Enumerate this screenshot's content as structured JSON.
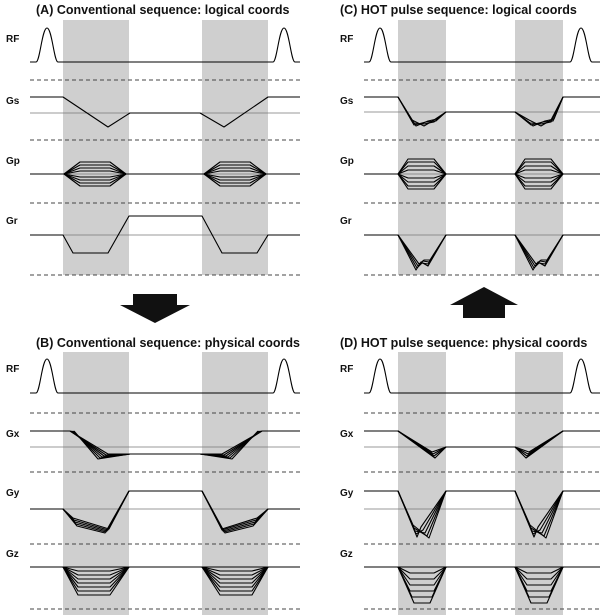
{
  "panels": [
    {
      "id": "A",
      "title": "(A) Conventional sequence: logical coords",
      "channels": [
        "RF",
        "Gs",
        "Gp",
        "Gr"
      ]
    },
    {
      "id": "C",
      "title": "(C) HOT pulse sequence: logical coords",
      "channels": [
        "RF",
        "Gs",
        "Gp",
        "Gr"
      ]
    },
    {
      "id": "B",
      "title": "(B) Conventional sequence: physical coords",
      "channels": [
        "RF",
        "Gx",
        "Gy",
        "Gz"
      ]
    },
    {
      "id": "D",
      "title": "(D) HOT pulse sequence: physical coords",
      "channels": [
        "RF",
        "Gx",
        "Gy",
        "Gz"
      ]
    }
  ],
  "arrows": [
    {
      "name": "down-arrow",
      "direction": "down",
      "meaning": "logical to physical"
    },
    {
      "name": "up-arrow",
      "direction": "up",
      "meaning": "physical to logical"
    }
  ],
  "colors": {
    "shade": "#cfcfcf",
    "line": "#000000",
    "baseline": "#777777",
    "dash": "#444444"
  }
}
